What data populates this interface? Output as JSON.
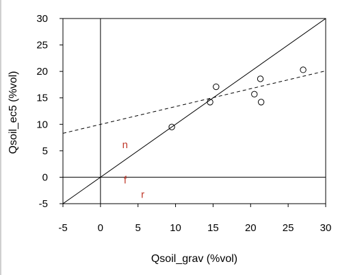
{
  "chart_data": {
    "type": "scatter",
    "title": "",
    "xlabel": "Qsoil_grav (%vol)",
    "ylabel": "Qsoil_ec5 (%vol)",
    "xlim": [
      -5,
      30
    ],
    "ylim": [
      -5,
      30
    ],
    "x_ticks": [
      -5,
      0,
      5,
      10,
      15,
      20,
      25,
      30
    ],
    "y_ticks": [
      -5,
      0,
      5,
      10,
      15,
      20,
      25,
      30
    ],
    "grid": false,
    "points": [
      {
        "x": 9.5,
        "y": 9.5
      },
      {
        "x": 14.6,
        "y": 14.2
      },
      {
        "x": 15.4,
        "y": 17.1
      },
      {
        "x": 20.5,
        "y": 15.7
      },
      {
        "x": 21.3,
        "y": 18.6
      },
      {
        "x": 21.4,
        "y": 14.2
      },
      {
        "x": 27.0,
        "y": 20.3
      }
    ],
    "lines": [
      {
        "kind": "one-to-one",
        "style": "solid",
        "x": [
          -5,
          30
        ],
        "y": [
          -5,
          30
        ]
      },
      {
        "kind": "regression",
        "style": "dashed",
        "x": [
          -5,
          30
        ],
        "y": [
          8.3,
          20.1
        ]
      },
      {
        "kind": "zero-x",
        "style": "solid",
        "x": [
          0,
          0
        ],
        "y": [
          -5,
          30
        ]
      },
      {
        "kind": "zero-y",
        "style": "solid",
        "x": [
          -5,
          30
        ],
        "y": [
          0,
          0
        ]
      }
    ],
    "annotations": [
      {
        "text": "n",
        "x": 2.9,
        "y": 5.5,
        "color": "#c0392b"
      },
      {
        "text": "f",
        "x": 3.1,
        "y": -1.2,
        "color": "#c0392b"
      },
      {
        "text": "r",
        "x": 5.4,
        "y": -3.9,
        "color": "#c0392b"
      }
    ]
  }
}
